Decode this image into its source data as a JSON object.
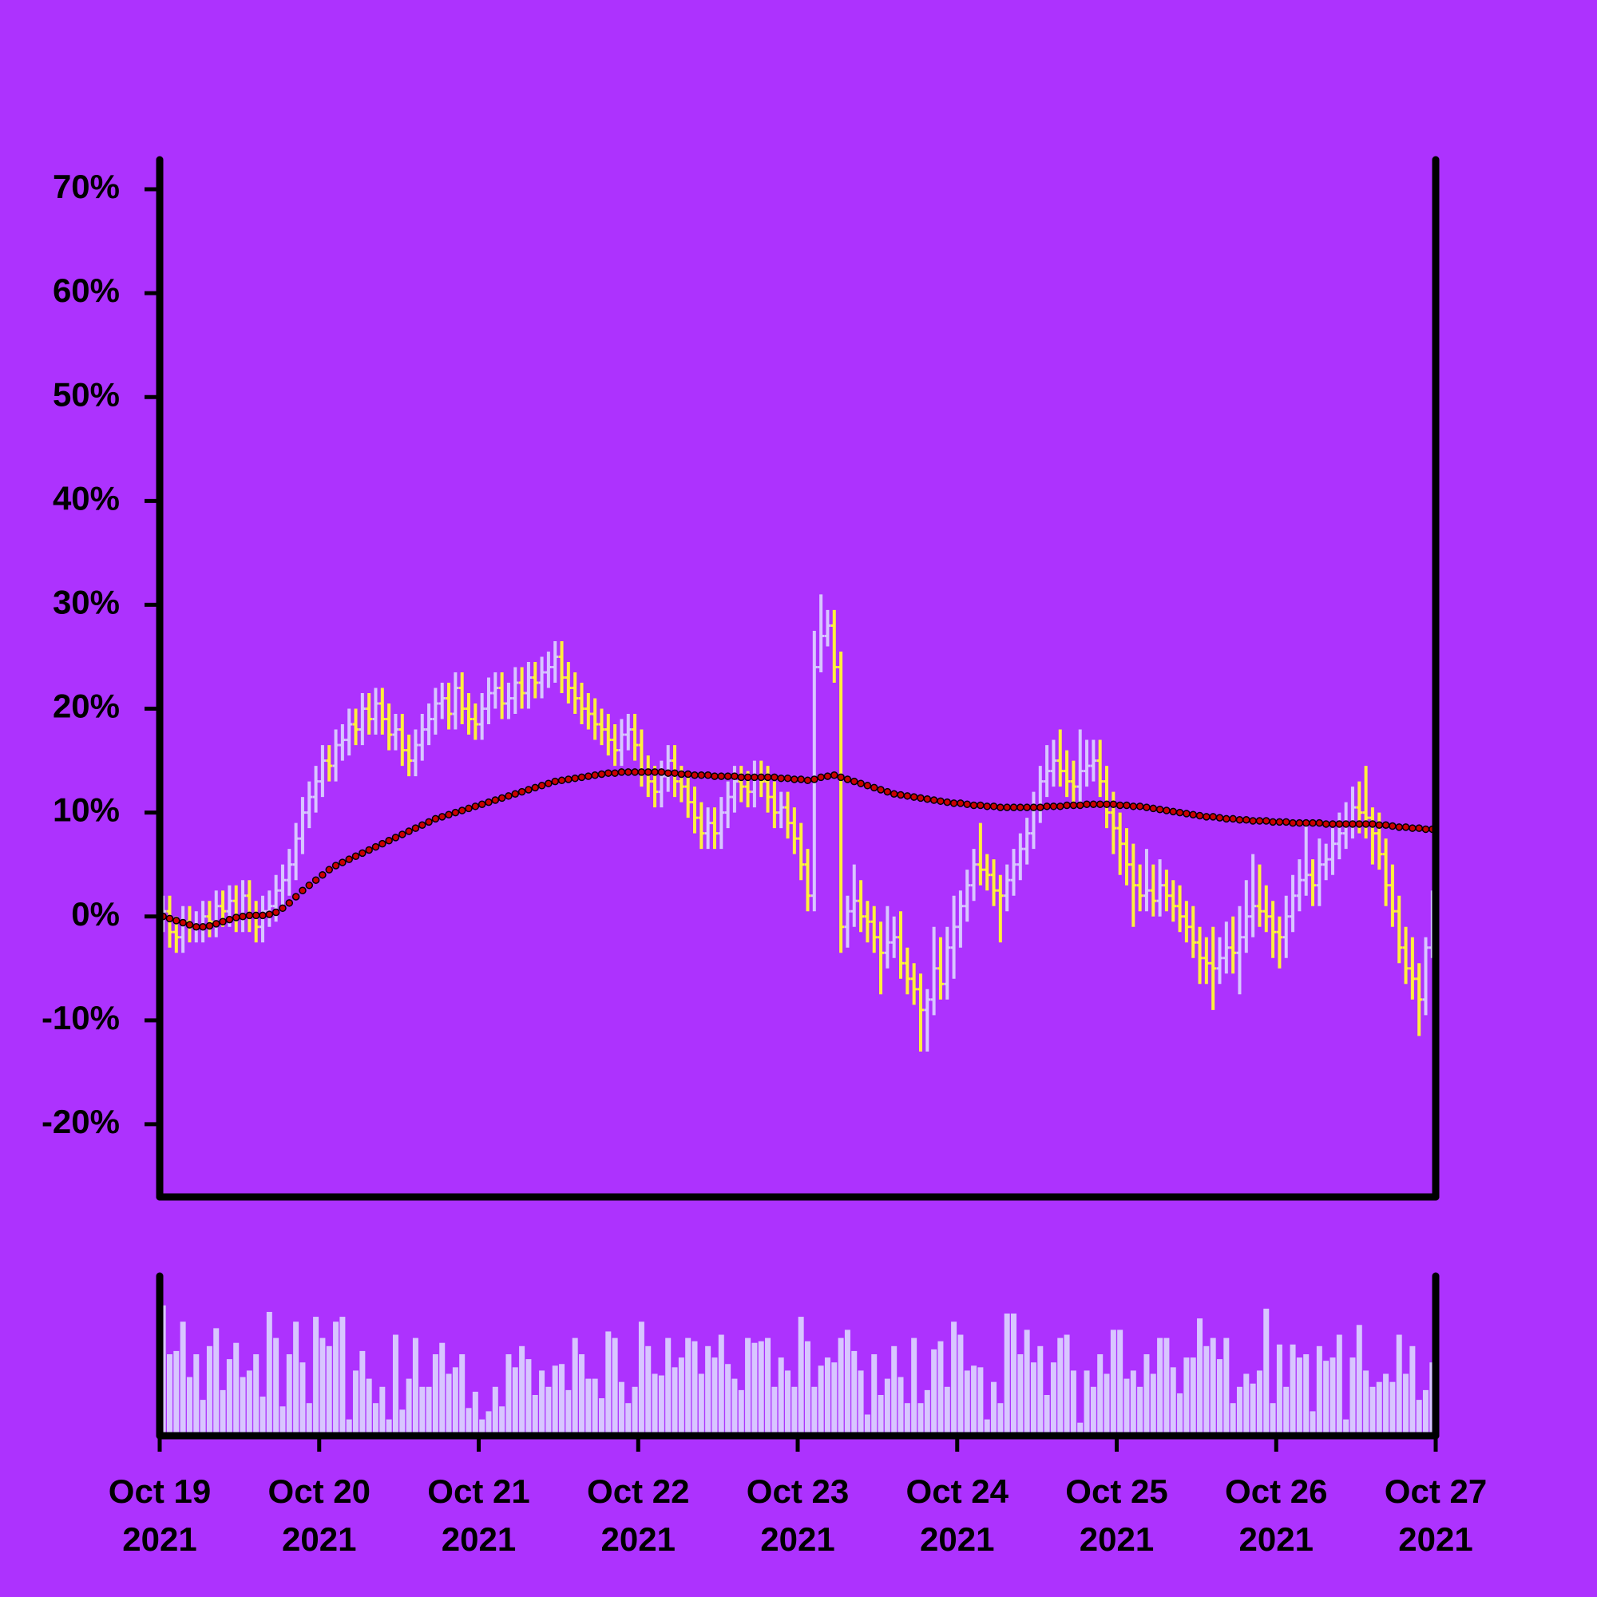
{
  "chart_data": {
    "type": "ohlc",
    "up_color": "#d8c6ff",
    "down_color": "#fff03c",
    "background": "#ad32fe",
    "xlim": [
      0,
      192
    ],
    "xticks": [
      {
        "value": 0,
        "label": "Oct 19 2021"
      },
      {
        "value": 24,
        "label": "Oct 20 2021"
      },
      {
        "value": 48,
        "label": "Oct 21 2021"
      },
      {
        "value": 72,
        "label": "Oct 22 2021"
      },
      {
        "value": 96,
        "label": "Oct 23 2021"
      },
      {
        "value": 120,
        "label": "Oct 24 2021"
      },
      {
        "value": 144,
        "label": "Oct 25 2021"
      },
      {
        "value": 168,
        "label": "Oct 26 2021"
      },
      {
        "value": 192,
        "label": "Oct 27 2021"
      }
    ],
    "ylim": [
      -27,
      73
    ],
    "yticks": [
      {
        "value": -20,
        "label": "-20%"
      },
      {
        "value": -10,
        "label": "-10%"
      },
      {
        "value": 0,
        "label": "0%"
      },
      {
        "value": 10,
        "label": "10%"
      },
      {
        "value": 20,
        "label": "20%"
      },
      {
        "value": 30,
        "label": "30%"
      },
      {
        "value": 40,
        "label": "40%"
      },
      {
        "value": 50,
        "label": "50%"
      },
      {
        "value": 60,
        "label": "60%"
      },
      {
        "value": 70,
        "label": "70%"
      }
    ],
    "x": [
      0.5,
      1.5,
      2.5,
      3.5,
      4.5,
      5.5,
      6.5,
      7.5,
      8.5,
      9.5,
      10.5,
      11.5,
      12.5,
      13.5,
      14.5,
      15.5,
      16.5,
      17.5,
      18.5,
      19.5,
      20.5,
      21.5,
      22.5,
      23.5,
      24.5,
      25.5,
      26.5,
      27.5,
      28.5,
      29.5,
      30.5,
      31.5,
      32.5,
      33.5,
      34.5,
      35.5,
      36.5,
      37.5,
      38.5,
      39.5,
      40.5,
      41.5,
      42.5,
      43.5,
      44.5,
      45.5,
      46.5,
      47.5,
      48.5,
      49.5,
      50.5,
      51.5,
      52.5,
      53.5,
      54.5,
      55.5,
      56.5,
      57.5,
      58.5,
      59.5,
      60.5,
      61.5,
      62.5,
      63.5,
      64.5,
      65.5,
      66.5,
      67.5,
      68.5,
      69.5,
      70.5,
      71.5,
      72.5,
      73.5,
      74.5,
      75.5,
      76.5,
      77.5,
      78.5,
      79.5,
      80.5,
      81.5,
      82.5,
      83.5,
      84.5,
      85.5,
      86.5,
      87.5,
      88.5,
      89.5,
      90.5,
      91.5,
      92.5,
      93.5,
      94.5,
      95.5,
      96.5,
      97.5,
      98.5,
      99.5,
      100.5,
      101.5,
      102.5,
      103.5,
      104.5,
      105.5,
      106.5,
      107.5,
      108.5,
      109.5,
      110.5,
      111.5,
      112.5,
      113.5,
      114.5,
      115.5,
      116.5,
      117.5,
      118.5,
      119.5,
      120.5,
      121.5,
      122.5,
      123.5,
      124.5,
      125.5,
      126.5,
      127.5,
      128.5,
      129.5,
      130.5,
      131.5,
      132.5,
      133.5,
      134.5,
      135.5,
      136.5,
      137.5,
      138.5,
      139.5,
      140.5,
      141.5,
      142.5,
      143.5,
      144.5,
      145.5,
      146.5,
      147.5,
      148.5,
      149.5,
      150.5,
      151.5,
      152.5,
      153.5,
      154.5,
      155.5,
      156.5,
      157.5,
      158.5,
      159.5,
      160.5,
      161.5,
      162.5,
      163.5,
      164.5,
      165.5,
      166.5,
      167.5,
      168.5,
      169.5,
      170.5,
      171.5,
      172.5,
      173.5,
      174.5,
      175.5,
      176.5,
      177.5,
      178.5,
      179.5,
      180.5,
      181.5,
      182.5,
      183.5,
      184.5,
      185.5,
      186.5,
      187.5,
      188.5,
      189.5,
      190.5,
      191.5
    ],
    "open": [
      0,
      0.5,
      -1.5,
      -2,
      -0.5,
      -1,
      -1,
      0,
      -0.5,
      1,
      0.5,
      1.5,
      0,
      2,
      0,
      -1,
      0.5,
      1,
      2.5,
      3.5,
      5,
      7.5,
      10,
      11.5,
      13,
      15,
      14.5,
      16.5,
      17,
      18.5,
      18,
      20,
      19,
      20.5,
      19,
      17.5,
      18,
      16,
      15,
      16.5,
      18,
      19,
      20.5,
      21,
      19.5,
      22,
      20,
      19,
      18.5,
      20,
      21.5,
      22,
      20.5,
      21,
      22.5,
      21.5,
      23,
      22.5,
      23.5,
      24,
      25,
      23,
      22,
      21,
      20,
      19.5,
      18.5,
      18,
      17,
      16,
      17.5,
      18,
      16.5,
      14,
      13,
      12,
      13.5,
      15,
      13,
      12.5,
      11,
      9.5,
      8,
      9,
      8,
      10,
      11.5,
      13,
      12.5,
      12,
      13.5,
      13,
      11.5,
      10,
      10.5,
      9,
      7.5,
      5,
      2,
      24,
      27,
      28,
      24,
      -1,
      0.5,
      1.5,
      0,
      -0.5,
      -2,
      -3.5,
      -2.5,
      -2,
      -4.5,
      -6,
      -7,
      -9,
      -8,
      -5,
      -6.5,
      -3,
      -1,
      1,
      3,
      5,
      4.5,
      4,
      2.5,
      2,
      3.5,
      5,
      6.5,
      8,
      10.5,
      13,
      14,
      15,
      14,
      13,
      12.5,
      14,
      14.5,
      15,
      13,
      10,
      8.5,
      7,
      5,
      3,
      2,
      2.5,
      1.5,
      3,
      2,
      1,
      0,
      -1,
      -2.5,
      -4,
      -4.5,
      -5,
      -4,
      -3,
      -3.5,
      -2,
      0,
      1,
      0.5,
      0,
      -1.5,
      -2,
      0,
      2,
      3.5,
      4,
      3,
      5,
      5.5,
      7,
      8,
      9,
      10.5,
      10,
      9.5,
      8,
      6,
      3,
      0.5,
      -3,
      -5,
      -6,
      -8,
      -3
    ],
    "high": [
      2,
      2,
      0,
      1,
      1,
      0.5,
      1.5,
      1.5,
      2.5,
      2.5,
      3,
      3,
      3.5,
      3.5,
      1.5,
      2,
      2.5,
      4,
      5,
      6.5,
      9,
      11.5,
      13,
      14.5,
      16.5,
      16.5,
      18,
      18.5,
      20,
      20,
      21.5,
      21.5,
      22,
      22,
      20.5,
      19.5,
      19.5,
      17.5,
      18,
      19.5,
      20.5,
      22,
      22.5,
      22.5,
      23.5,
      23.5,
      21.5,
      20.5,
      21.5,
      23,
      23.5,
      23.5,
      22.5,
      24,
      24,
      24.5,
      24.5,
      25,
      25.5,
      26.5,
      26.5,
      24.5,
      23.5,
      22.5,
      21.5,
      21,
      20,
      19.5,
      18.5,
      19,
      19.5,
      19.5,
      18,
      15.5,
      14.5,
      15,
      16.5,
      16.5,
      14.5,
      14,
      12.5,
      11,
      10.5,
      10.5,
      11.5,
      13,
      14.5,
      14.5,
      14,
      15,
      15,
      14.5,
      13,
      12,
      12,
      10.5,
      9,
      6.5,
      27.5,
      31,
      29.5,
      29.5,
      25.5,
      2,
      5,
      3.5,
      1.5,
      1,
      -0.5,
      1,
      0,
      0.5,
      -3,
      -4.5,
      -5.5,
      -7,
      -1,
      -2,
      -1,
      2,
      2.5,
      4.5,
      6.5,
      9,
      6,
      5.5,
      4,
      5,
      6.5,
      8,
      9.5,
      12,
      14.5,
      16.5,
      17,
      18,
      16,
      15,
      18,
      17,
      17,
      17,
      14.5,
      12,
      10,
      8.5,
      7,
      5,
      6.5,
      5,
      5.5,
      4.5,
      3.5,
      3,
      1.5,
      1,
      -1,
      -2,
      -1,
      -2,
      -0.5,
      0,
      1,
      3.5,
      6,
      5,
      3,
      1.5,
      0,
      2,
      4,
      5.5,
      9,
      5.5,
      7.5,
      7,
      8.5,
      10,
      11,
      12.5,
      13,
      14.5,
      10.5,
      10,
      7.5,
      5,
      2,
      -1,
      -2,
      -4.5,
      -2,
      2.5
    ],
    "low": [
      -1.5,
      -3,
      -3.5,
      -3.5,
      -2.5,
      -2.5,
      -2.5,
      -2,
      -2,
      -1,
      -1,
      -1.5,
      -1.5,
      -1.5,
      -2.5,
      -2.5,
      -1,
      -0.5,
      1,
      2,
      3.5,
      6,
      8.5,
      10,
      11.5,
      13,
      13,
      15,
      15.5,
      16.5,
      16.5,
      17.5,
      17.5,
      17.5,
      16,
      16,
      14.5,
      13.5,
      13.5,
      15,
      16.5,
      17.5,
      19,
      18,
      18,
      18.5,
      17.5,
      17,
      17,
      18.5,
      20,
      19,
      19,
      19.5,
      20,
      20,
      21,
      21,
      22,
      22.5,
      21.5,
      20.5,
      19.5,
      18.5,
      18,
      17,
      16.5,
      15.5,
      14.5,
      14.5,
      16,
      15,
      12.5,
      11.5,
      10.5,
      10.5,
      12,
      11.5,
      11,
      9.5,
      8,
      6.5,
      6.5,
      6.5,
      6.5,
      8.5,
      10,
      11,
      10.5,
      10.5,
      11.5,
      10,
      8.5,
      8.5,
      7.5,
      6,
      3.5,
      0.5,
      0.5,
      23.5,
      26,
      22.5,
      -3.5,
      -3,
      -1,
      -1.5,
      -2.5,
      -3.5,
      -7.5,
      -5,
      -4,
      -6,
      -7.5,
      -8.5,
      -13,
      -13,
      -9.5,
      -8,
      -8,
      -6,
      -3,
      -0.5,
      1.5,
      3,
      2.5,
      1,
      -2.5,
      0.5,
      2,
      3.5,
      5,
      6.5,
      9,
      11.5,
      12.5,
      12.5,
      11.5,
      10.5,
      11,
      12.5,
      13,
      11.5,
      8.5,
      6,
      4,
      3,
      -1,
      0.5,
      0.5,
      0,
      0,
      0.5,
      -0.5,
      -1.5,
      -2.5,
      -4,
      -6.5,
      -6.5,
      -9,
      -6.5,
      -5.5,
      -5.5,
      -7.5,
      -3.5,
      -2,
      -1,
      -1.5,
      -4,
      -5,
      -4,
      -1.5,
      0.5,
      2,
      1,
      1,
      3.5,
      4,
      5.5,
      6.5,
      7.5,
      8,
      7.5,
      5,
      4.5,
      1,
      -1,
      -4.5,
      -6.5,
      -8,
      -11.5,
      -9.5,
      -4
    ],
    "close": [
      0.5,
      -1.5,
      -2,
      -0.5,
      -1,
      -1,
      0,
      -0.5,
      1,
      0.5,
      1.5,
      0,
      2,
      0,
      -1,
      0.5,
      1,
      2.5,
      3.5,
      5,
      7.5,
      10,
      11.5,
      13,
      15,
      14.5,
      16.5,
      17,
      18.5,
      18,
      20,
      19,
      20.5,
      19,
      17.5,
      18,
      16,
      15,
      16.5,
      18,
      19,
      20.5,
      21,
      19.5,
      22,
      20,
      19,
      18.5,
      20,
      21.5,
      22,
      20.5,
      21,
      22.5,
      21.5,
      23,
      22.5,
      23.5,
      24,
      25,
      23,
      22,
      21,
      20,
      19.5,
      18.5,
      18,
      17,
      16,
      17.5,
      18,
      16.5,
      14,
      13,
      12,
      13.5,
      15,
      13,
      12.5,
      11,
      9.5,
      8,
      9,
      8,
      10,
      11.5,
      13,
      12.5,
      12,
      13.5,
      13,
      11.5,
      10,
      10.5,
      9,
      7.5,
      5,
      2,
      24,
      27,
      28,
      24,
      -1,
      0.5,
      1.5,
      0,
      -0.5,
      -2,
      -3.5,
      -2.5,
      -2,
      -4.5,
      -6,
      -7,
      -9,
      -8,
      -5,
      -6.5,
      -3,
      -1,
      1,
      3,
      5,
      4.5,
      4,
      2.5,
      2,
      3.5,
      5,
      6.5,
      8,
      10.5,
      13,
      14,
      15,
      14,
      13,
      12.5,
      14,
      14.5,
      15,
      13,
      10,
      8.5,
      7,
      5,
      3,
      2,
      2.5,
      1.5,
      3,
      2,
      1,
      0,
      -1,
      -2.5,
      -4,
      -4.5,
      -5,
      -4,
      -3,
      -3.5,
      -2,
      0,
      1,
      0.5,
      0,
      -1.5,
      -2,
      0,
      2,
      3.5,
      4,
      3,
      5,
      5.5,
      7,
      8,
      9,
      10.5,
      10,
      9.5,
      8,
      6,
      3,
      0.5,
      -3,
      -5,
      -6,
      -8,
      -3,
      1
    ],
    "moving_average": {
      "color": "#cc0000",
      "values": [
        0,
        -0.2,
        -0.4,
        -0.6,
        -0.8,
        -1,
        -1,
        -0.9,
        -0.7,
        -0.5,
        -0.3,
        -0.1,
        0,
        0.1,
        0.1,
        0.1,
        0.2,
        0.4,
        0.8,
        1.3,
        1.9,
        2.5,
        3,
        3.5,
        4,
        4.5,
        4.9,
        5.2,
        5.5,
        5.8,
        6.1,
        6.4,
        6.7,
        7,
        7.3,
        7.6,
        7.9,
        8.2,
        8.5,
        8.8,
        9.1,
        9.4,
        9.6,
        9.8,
        10,
        10.2,
        10.4,
        10.6,
        10.8,
        11,
        11.2,
        11.4,
        11.6,
        11.8,
        12,
        12.2,
        12.4,
        12.6,
        12.8,
        13,
        13.1,
        13.2,
        13.3,
        13.4,
        13.5,
        13.6,
        13.7,
        13.8,
        13.8,
        13.9,
        13.9,
        13.9,
        13.9,
        13.9,
        13.9,
        13.9,
        13.8,
        13.8,
        13.7,
        13.7,
        13.6,
        13.6,
        13.6,
        13.5,
        13.5,
        13.5,
        13.5,
        13.4,
        13.4,
        13.4,
        13.4,
        13.4,
        13.4,
        13.3,
        13.3,
        13.2,
        13.2,
        13.1,
        13.2,
        13.4,
        13.5,
        13.6,
        13.4,
        13.2,
        13,
        12.8,
        12.6,
        12.4,
        12.2,
        12,
        11.8,
        11.7,
        11.6,
        11.5,
        11.4,
        11.3,
        11.2,
        11.1,
        11,
        10.9,
        10.9,
        10.8,
        10.7,
        10.7,
        10.6,
        10.6,
        10.5,
        10.5,
        10.5,
        10.5,
        10.5,
        10.5,
        10.5,
        10.6,
        10.6,
        10.6,
        10.7,
        10.7,
        10.7,
        10.8,
        10.8,
        10.8,
        10.8,
        10.8,
        10.7,
        10.7,
        10.6,
        10.6,
        10.5,
        10.4,
        10.3,
        10.2,
        10.1,
        10,
        9.9,
        9.8,
        9.7,
        9.6,
        9.6,
        9.5,
        9.4,
        9.4,
        9.3,
        9.3,
        9.2,
        9.2,
        9.2,
        9.1,
        9.1,
        9.1,
        9,
        9,
        9,
        9,
        9,
        8.9,
        8.9,
        8.9,
        8.9,
        8.9,
        8.9,
        8.9,
        8.9,
        8.8,
        8.8,
        8.7,
        8.6,
        8.6,
        8.5,
        8.5,
        8.4,
        8.4
      ]
    },
    "volume": {
      "color": "#d8c6ff",
      "ylim": [
        0,
        100
      ],
      "values": [
        80,
        50,
        52,
        70,
        36,
        50,
        22,
        55,
        66,
        28,
        47,
        57,
        36,
        40,
        50,
        24,
        76,
        60,
        18,
        50,
        70,
        45,
        20,
        73,
        60,
        55,
        70,
        73,
        10,
        40,
        52,
        35,
        20,
        30,
        10,
        62,
        16,
        35,
        60,
        30,
        30,
        50,
        57,
        38,
        42,
        50,
        17,
        27,
        10,
        15,
        30,
        18,
        50,
        42,
        55,
        47,
        25,
        40,
        30,
        43,
        44,
        28,
        60,
        50,
        35,
        35,
        23,
        64,
        60,
        33,
        20,
        30,
        70,
        55,
        38,
        37,
        60,
        42,
        48,
        60,
        58,
        38,
        55,
        48,
        62,
        44,
        35,
        28,
        60,
        57,
        58,
        60,
        30,
        48,
        40,
        30,
        73,
        58,
        30,
        43,
        48,
        45,
        60,
        65,
        52,
        40,
        13,
        50,
        25,
        35,
        55,
        36,
        20,
        60,
        20,
        28,
        53,
        58,
        30,
        70,
        62,
        40,
        43,
        42,
        10,
        33,
        20,
        75,
        75,
        50,
        65,
        45,
        55,
        25,
        45,
        60,
        62,
        40,
        8,
        40,
        30,
        50,
        38,
        65,
        65,
        35,
        40,
        30,
        50,
        38,
        60,
        60,
        42,
        26,
        48,
        48,
        72,
        55,
        60,
        47,
        60,
        20,
        30,
        38,
        32,
        40,
        78,
        20,
        56,
        30,
        56,
        48,
        50,
        15,
        55,
        46,
        48,
        62,
        10,
        48,
        68,
        40,
        30,
        33,
        38,
        33,
        62,
        38,
        55,
        22,
        28,
        45
      ]
    }
  }
}
